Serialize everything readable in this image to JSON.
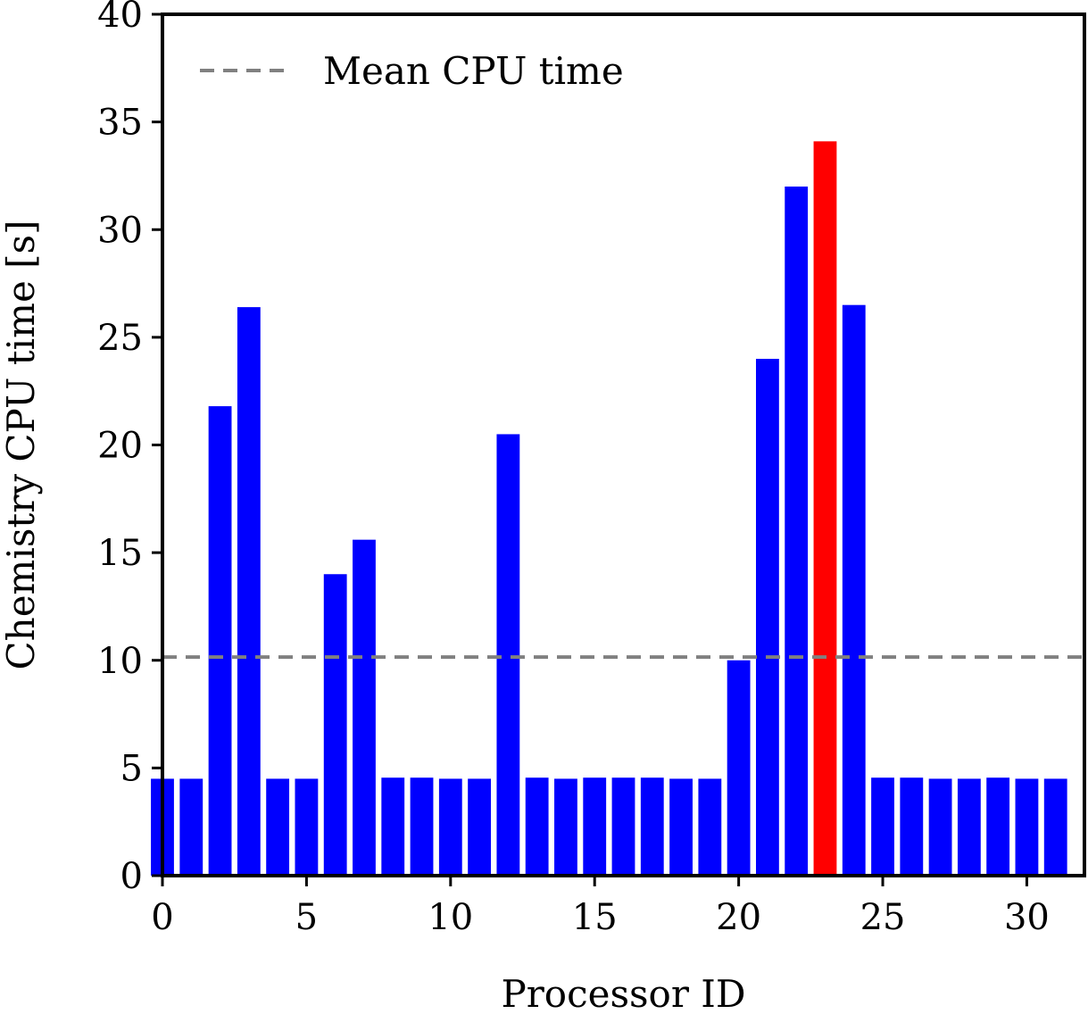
{
  "chart_data": {
    "type": "bar",
    "x": [
      0,
      1,
      2,
      3,
      4,
      5,
      6,
      7,
      8,
      9,
      10,
      11,
      12,
      13,
      14,
      15,
      16,
      17,
      18,
      19,
      20,
      21,
      22,
      23,
      24,
      25,
      26,
      27,
      28,
      29,
      30,
      31
    ],
    "values": [
      4.5,
      4.5,
      21.8,
      26.4,
      4.5,
      4.5,
      14.0,
      15.6,
      4.55,
      4.55,
      4.5,
      4.5,
      20.5,
      4.55,
      4.5,
      4.55,
      4.55,
      4.55,
      4.5,
      4.5,
      10.0,
      24.0,
      32.0,
      34.1,
      26.5,
      4.55,
      4.55,
      4.5,
      4.5,
      4.55,
      4.5,
      4.5
    ],
    "highlight_index": 23,
    "colors": {
      "bar": "#0000ff",
      "highlight": "#ff0000",
      "mean_line": "#808080"
    },
    "mean_value": 10.15,
    "xlabel": "Processor ID",
    "ylabel": "Chemistry CPU time [s]",
    "xlim": [
      0,
      32
    ],
    "ylim": [
      0,
      40
    ],
    "xticks": [
      0,
      5,
      10,
      15,
      20,
      25,
      30
    ],
    "yticks": [
      0,
      5,
      10,
      15,
      20,
      25,
      30,
      35,
      40
    ],
    "legend": {
      "entries": [
        {
          "label": "Mean CPU time",
          "style": "dashed",
          "color": "#808080"
        }
      ],
      "placement": "top-left"
    },
    "grid": false
  }
}
